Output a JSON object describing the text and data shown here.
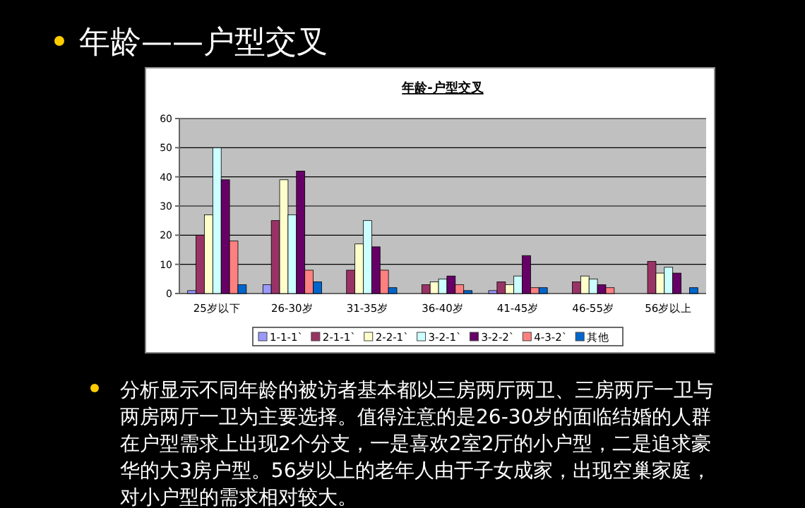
{
  "chart_data": {
    "type": "bar",
    "title": "年龄-户型交叉",
    "annotations": [
      "年龄——户型交叉",
      "分析显示不同年龄的被访者基本都以三房两厅两卫、三房两厅一卫与两房两厅一卫为主要选择。值得注意的是26-30岁的面临结婚的人群在户型需求上出现2个分支，一是喜欢2室2厅的小户型，二是追求豪华的大3房户型。56岁以上的老年人由于子女成家，出现空巢家庭，对小户型的需求相对较大。"
    ],
    "categories": [
      "25岁以下",
      "26-30岁",
      "31-35岁",
      "36-40岁",
      "41-45岁",
      "46-55岁",
      "56岁以上"
    ],
    "series": [
      {
        "name": "1-1-1`",
        "color": "#9999ff",
        "values": [
          1,
          3,
          0,
          0,
          1,
          0,
          0
        ]
      },
      {
        "name": "2-1-1`",
        "color": "#993366",
        "values": [
          20,
          25,
          8,
          3,
          4,
          4,
          11
        ]
      },
      {
        "name": "2-2-1`",
        "color": "#ffffcc",
        "values": [
          27,
          39,
          17,
          4,
          3,
          6,
          7
        ]
      },
      {
        "name": "3-2-1`",
        "color": "#ccffff",
        "values": [
          50,
          27,
          25,
          5,
          6,
          5,
          9
        ]
      },
      {
        "name": "3-2-2`",
        "color": "#660066",
        "values": [
          39,
          42,
          16,
          6,
          13,
          3,
          7
        ]
      },
      {
        "name": "4-3-2`",
        "color": "#ff8080",
        "values": [
          18,
          8,
          8,
          3,
          2,
          2,
          0
        ]
      },
      {
        "name": "其他",
        "color": "#0066cc",
        "values": [
          3,
          4,
          2,
          1,
          2,
          0,
          2
        ]
      }
    ],
    "ylim": [
      0,
      60
    ],
    "yticks": [
      0,
      10,
      20,
      30,
      40,
      50,
      60
    ],
    "grid": "y",
    "legend": "bottom"
  }
}
